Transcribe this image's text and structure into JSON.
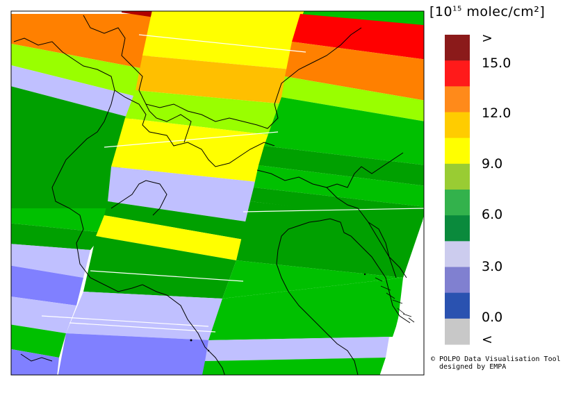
{
  "legend": {
    "title_prefix": "[10",
    "title_exponent": "15",
    "title_suffix": " molec/cm²]",
    "labels": [
      ">",
      "15.0",
      "12.0",
      "9.0",
      "6.0",
      "3.0",
      "0.0",
      "<"
    ],
    "colors": [
      "#8b1a1a",
      "#ff1a1a",
      "#ff8a1a",
      "#ffcc00",
      "#ffff00",
      "#99cc33",
      "#33b24c",
      "#0a8a3c",
      "#ccccee",
      "#8080d0",
      "#2a52b0",
      "#c8c8c8"
    ]
  },
  "credit": {
    "line1": "© POLPO Data Visualisation Tool",
    "line2": "designed by EMPA"
  },
  "map": {
    "colors": {
      "dark_red": "#b00000",
      "red": "#ff0000",
      "orange": "#ff8000",
      "gold": "#ffbf00",
      "yellow": "#ffff00",
      "light_green": "#99ff00",
      "green": "#00c000",
      "dark_green": "#00a000",
      "lavender": "#c0c0ff",
      "periwinkle": "#8080ff"
    }
  }
}
